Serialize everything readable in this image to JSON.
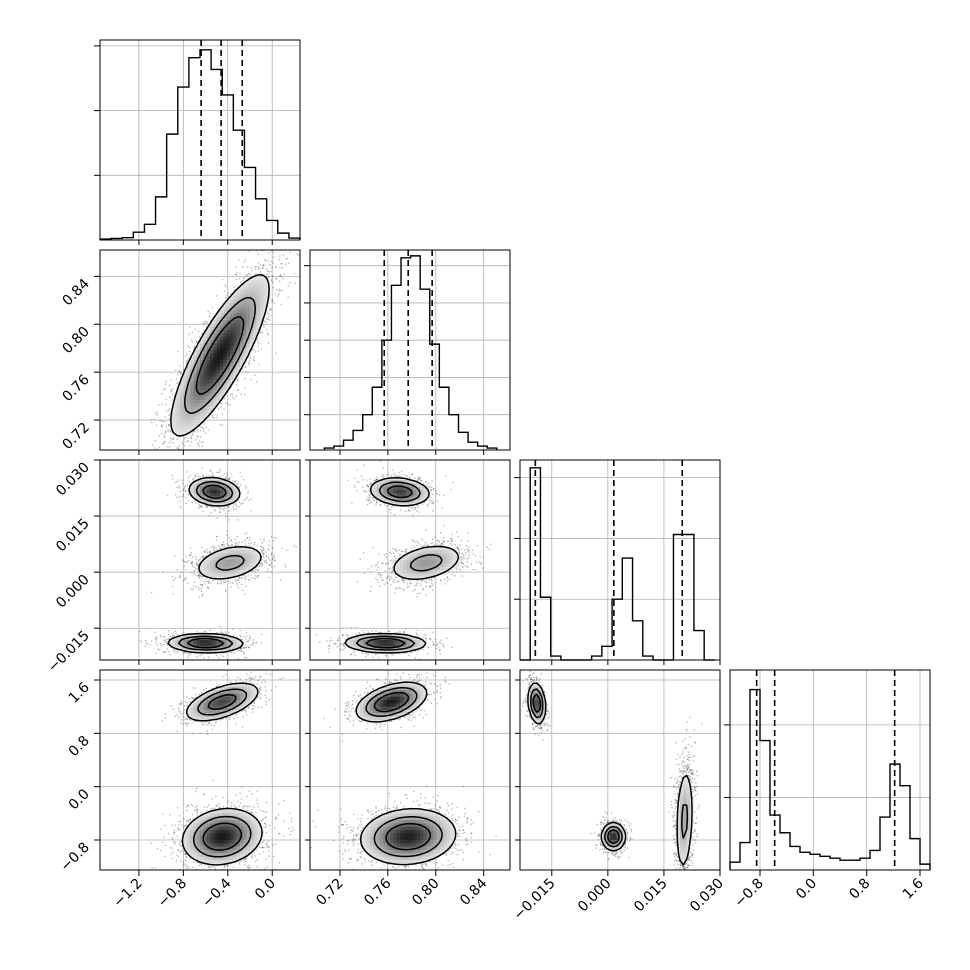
{
  "chart_data": {
    "type": "corner",
    "grid": true,
    "dim": 4,
    "quantile_style": "dashed",
    "colors": {
      "contour": "#000000",
      "hist": "#000000",
      "points": "#555555",
      "grid": "#b0b0b0"
    },
    "params": [
      {
        "range": [
          -1.55,
          0.25
        ],
        "ticks": [
          -1.2,
          -0.8,
          -0.4,
          0.0
        ],
        "tick_labels": [
          "−1.2",
          "−0.8",
          "−0.4",
          "0.0"
        ],
        "quantiles": [
          -0.64,
          -0.46,
          -0.27
        ],
        "hist": [
          0.005,
          0.008,
          0.012,
          0.04,
          0.08,
          0.22,
          0.54,
          0.78,
          0.93,
          0.97,
          0.87,
          0.74,
          0.56,
          0.37,
          0.21,
          0.1,
          0.035,
          0.01
        ],
        "hist_edges": [
          -1.55,
          0.25
        ]
      },
      {
        "range": [
          0.695,
          0.862
        ],
        "ticks": [
          0.72,
          0.76,
          0.8,
          0.84
        ],
        "tick_labels": [
          "0.72",
          "0.76",
          "0.80",
          "0.84"
        ],
        "quantiles": [
          0.757,
          0.777,
          0.797
        ],
        "hist": [
          0.01,
          0.02,
          0.05,
          0.1,
          0.18,
          0.32,
          0.56,
          0.84,
          0.98,
          0.99,
          0.82,
          0.54,
          0.32,
          0.18,
          0.09,
          0.04,
          0.02,
          0.01
        ],
        "hist_edges": [
          0.707,
          0.851
        ]
      },
      {
        "range": [
          -0.0235,
          0.03
        ],
        "ticks": [
          -0.015,
          0.0,
          0.015,
          0.03
        ],
        "tick_labels": [
          "−0.015",
          "0.000",
          "0.015",
          "0.030"
        ],
        "quantiles": [
          -0.0194,
          0.0016,
          0.0199
        ],
        "hist": [
          0.0,
          0.98,
          0.32,
          0.02,
          0.0,
          0.0,
          0.0,
          0.02,
          0.07,
          0.31,
          0.52,
          0.2,
          0.02,
          0.0,
          0.0,
          0.64,
          0.64,
          0.15,
          0.0
        ],
        "hist_edges": [
          -0.0235,
          0.0285
        ]
      },
      {
        "range": [
          -1.25,
          1.75
        ],
        "ticks": [
          -0.8,
          0.0,
          0.8,
          1.6
        ],
        "tick_labels": [
          "−0.8",
          "0.0",
          "0.8",
          "1.6"
        ],
        "quantiles": [
          -0.85,
          -0.58,
          1.22
        ],
        "hist": [
          0.04,
          0.14,
          0.92,
          0.66,
          0.28,
          0.19,
          0.12,
          0.09,
          0.08,
          0.07,
          0.06,
          0.05,
          0.05,
          0.06,
          0.1,
          0.27,
          0.54,
          0.43,
          0.16,
          0.03
        ],
        "hist_edges": [
          -1.25,
          1.75
        ]
      }
    ],
    "hist_y_ticks": [
      [
        0.33,
        0.66,
        0.99
      ],
      [
        0.18,
        0.37,
        0.56,
        0.75,
        0.94
      ],
      [
        0.31,
        0.62,
        0.93
      ],
      [
        0.37,
        0.74
      ]
    ],
    "pairs": [
      {
        "x": 0,
        "y": 1,
        "blobs": [
          {
            "cx": -0.47,
            "cy": 0.774,
            "sx": 0.21,
            "sy": 0.032,
            "rho": 0.82,
            "w": 1.0
          }
        ]
      },
      {
        "x": 0,
        "y": 2,
        "blobs": [
          {
            "cx": -0.52,
            "cy": 0.0215,
            "sx": 0.11,
            "sy": 0.0018,
            "rho": -0.15,
            "w": 0.33
          },
          {
            "cx": -0.38,
            "cy": 0.0025,
            "sx": 0.17,
            "sy": 0.0026,
            "rho": 0.35,
            "w": 0.33
          },
          {
            "cx": -0.6,
            "cy": -0.019,
            "sx": 0.16,
            "sy": 0.0012,
            "rho": -0.05,
            "w": 0.34
          }
        ]
      },
      {
        "x": 0,
        "y": 3,
        "blobs": [
          {
            "cx": -0.45,
            "cy": 1.27,
            "sx": 0.16,
            "sy": 0.14,
            "rho": 0.55,
            "w": 0.35
          },
          {
            "cx": -0.45,
            "cy": -0.75,
            "sx": 0.17,
            "sy": 0.2,
            "rho": 0.15,
            "w": 0.65
          }
        ]
      },
      {
        "x": 1,
        "y": 2,
        "blobs": [
          {
            "cx": 0.77,
            "cy": 0.0215,
            "sx": 0.012,
            "sy": 0.0018,
            "rho": -0.15,
            "w": 0.33
          },
          {
            "cx": 0.792,
            "cy": 0.0025,
            "sx": 0.016,
            "sy": 0.0026,
            "rho": 0.35,
            "w": 0.33
          },
          {
            "cx": 0.758,
            "cy": -0.019,
            "sx": 0.016,
            "sy": 0.0012,
            "rho": -0.05,
            "w": 0.34
          }
        ]
      },
      {
        "x": 1,
        "y": 3,
        "blobs": [
          {
            "cx": 0.763,
            "cy": 1.27,
            "sx": 0.014,
            "sy": 0.14,
            "rho": 0.45,
            "w": 0.35
          },
          {
            "cx": 0.777,
            "cy": -0.75,
            "sx": 0.019,
            "sy": 0.2,
            "rho": 0.1,
            "w": 0.65
          }
        ]
      },
      {
        "x": 2,
        "y": 3,
        "blobs": [
          {
            "cx": -0.019,
            "cy": 1.25,
            "sx": 0.0011,
            "sy": 0.15,
            "rho": -0.2,
            "w": 0.3
          },
          {
            "cx": 0.0015,
            "cy": -0.75,
            "sx": 0.0015,
            "sy": 0.1,
            "rho": 0.0,
            "w": 0.3
          },
          {
            "cx": 0.0205,
            "cy": -0.5,
            "sx": 0.0012,
            "sy": 0.42,
            "rho": 0.2,
            "w": 0.4
          }
        ]
      }
    ]
  }
}
